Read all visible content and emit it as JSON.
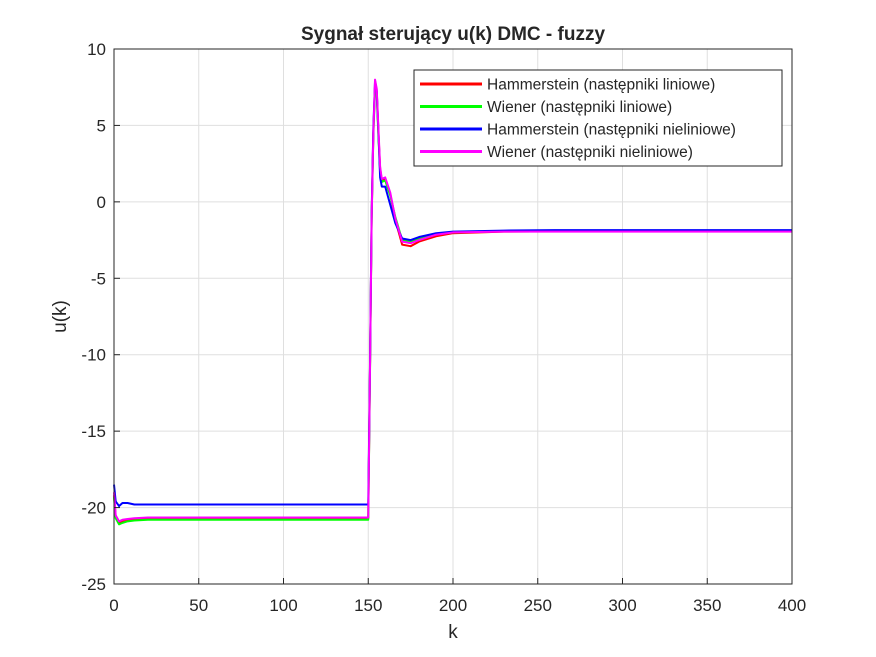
{
  "chart_data": {
    "type": "line",
    "title": "Sygnał sterujący u(k)    DMC - fuzzy",
    "xlabel": "k",
    "ylabel": "u(k)",
    "xlim": [
      0,
      400
    ],
    "ylim": [
      -25,
      10
    ],
    "xticks": [
      0,
      50,
      100,
      150,
      200,
      250,
      300,
      350,
      400
    ],
    "yticks": [
      -25,
      -20,
      -15,
      -10,
      -5,
      0,
      5,
      10
    ],
    "xtick_labels": [
      "0",
      "50",
      "100",
      "150",
      "200",
      "250",
      "300",
      "350",
      "400"
    ],
    "ytick_labels": [
      "-25",
      "-20",
      "-15",
      "-10",
      "-5",
      "0",
      "5",
      "10"
    ],
    "grid": true,
    "legend_position": "top-right",
    "series": [
      {
        "name": "Hammerstein (następniki liniowe)",
        "color": "#ff0000",
        "x": [
          0,
          1,
          3,
          5,
          8,
          12,
          20,
          50,
          100,
          150,
          151,
          152,
          153,
          154,
          155,
          156,
          157,
          158,
          160,
          163,
          166,
          170,
          175,
          180,
          190,
          200,
          230,
          260,
          300,
          350,
          400
        ],
        "y": [
          -19.2,
          -20.6,
          -21.0,
          -20.9,
          -20.8,
          -20.75,
          -20.7,
          -20.7,
          -20.7,
          -20.7,
          -11.3,
          -1.0,
          4.5,
          7.6,
          7.2,
          4.5,
          2.2,
          1.4,
          1.5,
          0.5,
          -1.2,
          -2.8,
          -2.9,
          -2.6,
          -2.25,
          -2.05,
          -1.95,
          -1.93,
          -1.92,
          -1.92,
          -1.92
        ]
      },
      {
        "name": "Wiener (następniki liniowe)",
        "color": "#00ff00",
        "x": [
          0,
          1,
          3,
          5,
          8,
          12,
          20,
          50,
          100,
          150,
          151,
          152,
          153,
          154,
          155,
          156,
          157,
          158,
          160,
          163,
          166,
          170,
          175,
          180,
          190,
          200,
          230,
          260,
          300,
          350,
          400
        ],
        "y": [
          -19.3,
          -20.7,
          -21.1,
          -21.0,
          -20.9,
          -20.85,
          -20.8,
          -20.8,
          -20.8,
          -20.8,
          -11.5,
          -1.2,
          4.3,
          7.4,
          7.0,
          4.3,
          2.0,
          1.3,
          1.4,
          0.4,
          -1.0,
          -2.5,
          -2.6,
          -2.4,
          -2.1,
          -2.0,
          -1.92,
          -1.9,
          -1.88,
          -1.88,
          -1.88
        ]
      },
      {
        "name": "Hammerstein (następniki nieliniowe)",
        "color": "#0000ff",
        "x": [
          0,
          1,
          3,
          5,
          8,
          12,
          20,
          50,
          100,
          150,
          151,
          152,
          153,
          154,
          155,
          156,
          157,
          158,
          160,
          163,
          166,
          170,
          175,
          180,
          190,
          200,
          230,
          260,
          300,
          350,
          400
        ],
        "y": [
          -18.5,
          -19.6,
          -19.9,
          -19.7,
          -19.7,
          -19.8,
          -19.8,
          -19.8,
          -19.8,
          -19.8,
          -11.0,
          -0.8,
          4.8,
          7.9,
          7.3,
          4.6,
          1.6,
          1.0,
          1.0,
          -0.2,
          -1.4,
          -2.4,
          -2.5,
          -2.3,
          -2.05,
          -1.95,
          -1.88,
          -1.85,
          -1.85,
          -1.85,
          -1.85
        ]
      },
      {
        "name": "Wiener (następniki nieliniowe)",
        "color": "#ff00ff",
        "x": [
          0,
          1,
          3,
          5,
          8,
          12,
          20,
          50,
          100,
          150,
          151,
          152,
          153,
          154,
          155,
          156,
          157,
          158,
          160,
          163,
          166,
          170,
          175,
          180,
          190,
          200,
          230,
          260,
          300,
          350,
          400
        ],
        "y": [
          -19.0,
          -20.5,
          -20.9,
          -20.8,
          -20.75,
          -20.7,
          -20.65,
          -20.65,
          -20.65,
          -20.65,
          -11.2,
          -1.1,
          4.4,
          8.0,
          7.4,
          4.8,
          2.3,
          1.5,
          1.6,
          0.6,
          -1.1,
          -2.6,
          -2.7,
          -2.5,
          -2.15,
          -2.0,
          -1.95,
          -1.95,
          -1.95,
          -1.95,
          -1.95
        ]
      }
    ]
  }
}
